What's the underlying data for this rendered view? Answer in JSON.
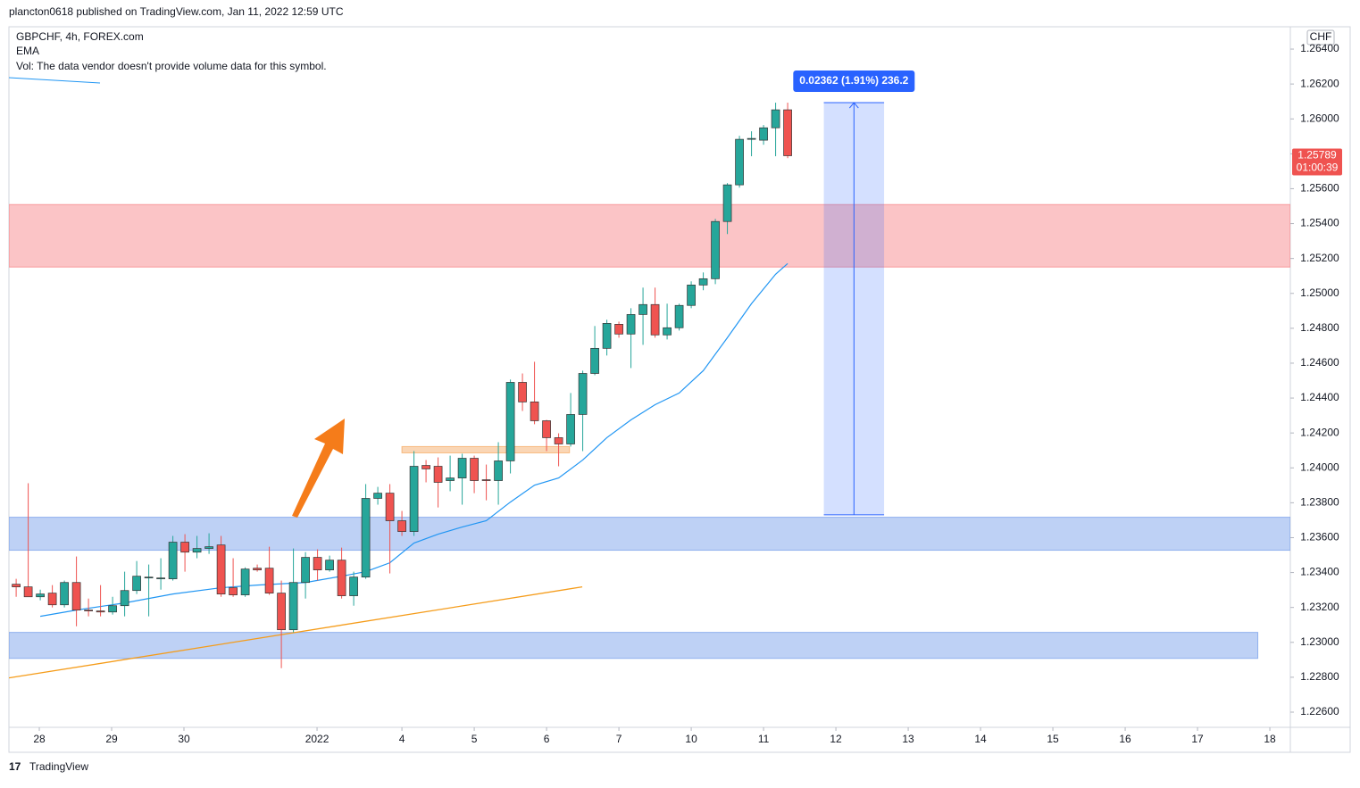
{
  "header": "plancton0618 published on TradingView.com, Jan 11, 2022 12:59 UTC",
  "footer": "TradingView",
  "chart_data": {
    "type": "candlestick",
    "legend": [
      "GBPCHF, 4h, FOREX.com",
      "EMA",
      "Vol: The data vendor doesn't provide volume data for this symbol."
    ],
    "currency": "CHF",
    "x": [
      0,
      1,
      2,
      3,
      4,
      5,
      6,
      7,
      8,
      9,
      10,
      11,
      12,
      13,
      14,
      15,
      16,
      17,
      18,
      19,
      20,
      21,
      22,
      23,
      24,
      25,
      26,
      27,
      28,
      29,
      30,
      31,
      32,
      33,
      34,
      35,
      36,
      37,
      38,
      39,
      40,
      41,
      42,
      43,
      44,
      45,
      46,
      47,
      48,
      49,
      50,
      51,
      52,
      53,
      54,
      55,
      56,
      57,
      58,
      59,
      60,
      61,
      62,
      63,
      64
    ],
    "open": [
      1.23333,
      1.23318,
      1.23261,
      1.23282,
      1.23215,
      1.23343,
      1.23185,
      1.2318,
      1.23174,
      1.2321,
      1.23297,
      1.23369,
      1.23364,
      1.23364,
      1.23574,
      1.23517,
      1.23538,
      1.23558,
      1.23313,
      1.23272,
      1.23425,
      1.23425,
      1.23282,
      1.23072,
      1.23343,
      1.23487,
      1.23415,
      1.23471,
      1.23267,
      1.23374,
      1.23825,
      1.23855,
      1.23697,
      1.23635,
      1.24014,
      1.24009,
      1.23927,
      1.23942,
      1.24055,
      1.23932,
      1.23927,
      1.2404,
      1.2449,
      1.24378,
      1.2427,
      1.24173,
      1.24137,
      1.24306,
      1.24541,
      1.24685,
      1.24823,
      1.24767,
      1.24879,
      1.24936,
      1.24762,
      1.24803,
      1.24931,
      1.25048,
      1.25084,
      1.25412,
      1.25622,
      1.25883,
      1.25878,
      1.25949,
      1.26052
    ],
    "high": [
      1.23364,
      1.23912,
      1.23302,
      1.23328,
      1.23354,
      1.23492,
      1.23251,
      1.23328,
      1.23261,
      1.23405,
      1.23466,
      1.23446,
      1.23482,
      1.2361,
      1.2362,
      1.2361,
      1.23625,
      1.2361,
      1.23482,
      1.2343,
      1.23446,
      1.23548,
      1.23354,
      1.23538,
      1.23517,
      1.23533,
      1.23497,
      1.23543,
      1.23405,
      1.23907,
      1.23891,
      1.23907,
      1.23753,
      1.24096,
      1.24045,
      1.2406,
      1.2407,
      1.24081,
      1.2407,
      1.24019,
      1.24147,
      1.24506,
      1.24541,
      1.24608,
      1.24275,
      1.24198,
      1.24429,
      1.24557,
      1.24813,
      1.24849,
      1.24838,
      1.24915,
      1.25033,
      1.25033,
      1.24941,
      1.24941,
      1.25069,
      1.2512,
      1.25427,
      1.25632,
      1.25903,
      1.25929,
      1.25965,
      1.26093,
      1.26093
    ],
    "low": [
      1.23261,
      1.23261,
      1.23241,
      1.232,
      1.232,
      1.23092,
      1.23149,
      1.23149,
      1.23159,
      1.23149,
      1.23277,
      1.23149,
      1.23302,
      1.23354,
      1.23405,
      1.23482,
      1.23507,
      1.23261,
      1.23261,
      1.23261,
      1.23405,
      1.23272,
      1.22852,
      1.23057,
      1.23251,
      1.23354,
      1.23405,
      1.23251,
      1.2321,
      1.23364,
      1.23789,
      1.23395,
      1.2361,
      1.2361,
      1.23917,
      1.23773,
      1.23866,
      1.23789,
      1.23855,
      1.23814,
      1.23789,
      1.23968,
      1.24326,
      1.2425,
      1.24096,
      1.24009,
      1.24122,
      1.24096,
      1.24531,
      1.24644,
      1.24746,
      1.24572,
      1.24705,
      1.24746,
      1.24736,
      1.24787,
      1.24915,
      1.25018,
      1.25053,
      1.2534,
      1.25606,
      1.25786,
      1.25852,
      1.25786,
      1.25775
    ],
    "close": [
      1.23318,
      1.23261,
      1.23277,
      1.23215,
      1.23343,
      1.23185,
      1.2318,
      1.23174,
      1.2321,
      1.23297,
      1.23379,
      1.23374,
      1.23369,
      1.23574,
      1.23517,
      1.23538,
      1.23548,
      1.23277,
      1.23272,
      1.2342,
      1.23415,
      1.23282,
      1.23072,
      1.23343,
      1.23487,
      1.23415,
      1.23471,
      1.23267,
      1.23374,
      1.23825,
      1.23855,
      1.23697,
      1.23635,
      1.24009,
      1.23994,
      1.23917,
      1.23942,
      1.24055,
      1.23927,
      1.23927,
      1.2404,
      1.2449,
      1.24378,
      1.2427,
      1.24173,
      1.24137,
      1.24306,
      1.24541,
      1.24685,
      1.24828,
      1.24767,
      1.24879,
      1.24936,
      1.24762,
      1.24803,
      1.24931,
      1.25048,
      1.25084,
      1.25412,
      1.25622,
      1.25883,
      1.25888,
      1.25949,
      1.26052,
      1.25789
    ],
    "up_color": "#26a69a",
    "down_color": "#ef5350",
    "ema": {
      "name": "EMA",
      "color": "#2196f3",
      "x": [
        2,
        5,
        9,
        13,
        17,
        20,
        24,
        27,
        29,
        31,
        33,
        35,
        37,
        39,
        41,
        43,
        45,
        47,
        49,
        51,
        53,
        55,
        57,
        59,
        61,
        63,
        64
      ],
      "values": [
        1.23149,
        1.23185,
        1.23226,
        1.23277,
        1.23313,
        1.23328,
        1.23343,
        1.23379,
        1.23405,
        1.23456,
        1.23569,
        1.2362,
        1.23661,
        1.23697,
        1.23804,
        1.23901,
        1.23942,
        1.24045,
        1.24173,
        1.24275,
        1.24362,
        1.24429,
        1.24557,
        1.24746,
        1.24941,
        1.2511,
        1.25171
      ]
    },
    "zones": [
      {
        "color": "#f77c80",
        "x": [
          -0.6,
          105.7
        ],
        "y": [
          1.25151,
          1.25509
        ]
      },
      {
        "color": "#6f98e8",
        "x": [
          -0.6,
          105.7
        ],
        "y": [
          1.23528,
          1.23717
        ]
      },
      {
        "color": "#6f98e8",
        "x": [
          -0.6,
          103
        ],
        "y": [
          1.22908,
          1.23057
        ]
      },
      {
        "color": "#f5a55a",
        "x": [
          32,
          45.9
        ],
        "y": [
          1.24086,
          1.24122
        ]
      }
    ],
    "trendline": {
      "color": "#f59c1a",
      "x": [
        -0.6,
        46.96
      ],
      "y": [
        1.22796,
        1.23318
      ]
    },
    "measure": {
      "x": [
        67,
        72
      ],
      "y": [
        1.23731,
        1.26093
      ],
      "label": "0.02362 (1.91%) 236.2"
    },
    "last_price": {
      "value": 1.25789,
      "label": "1.25789",
      "countdown": "01:00:39"
    },
    "xlim": [
      -0.6,
      105.7
    ],
    "xticks": [
      {
        "value": 1.92,
        "label": "28"
      },
      {
        "value": 7.92,
        "label": "29"
      },
      {
        "value": 13.92,
        "label": "30"
      },
      {
        "value": 24.96,
        "label": "2022"
      },
      {
        "value": 32,
        "label": "4"
      },
      {
        "value": 38,
        "label": "5"
      },
      {
        "value": 44,
        "label": "6"
      },
      {
        "value": 50,
        "label": "7"
      },
      {
        "value": 56,
        "label": "10"
      },
      {
        "value": 62,
        "label": "11"
      },
      {
        "value": 68,
        "label": "12"
      },
      {
        "value": 74,
        "label": "13"
      },
      {
        "value": 80,
        "label": "14"
      },
      {
        "value": 86,
        "label": "15"
      },
      {
        "value": 92,
        "label": "16"
      },
      {
        "value": 98,
        "label": "17"
      },
      {
        "value": 104,
        "label": "18"
      }
    ],
    "ylim": [
      1.22513,
      1.26528
    ],
    "yticks": [
      {
        "value": 1.264,
        "label": "1.26400"
      },
      {
        "value": 1.262,
        "label": "1.26200"
      },
      {
        "value": 1.26,
        "label": "1.26000"
      },
      {
        "value": 1.258,
        "label": "1.25800"
      },
      {
        "value": 1.256,
        "label": "1.25600"
      },
      {
        "value": 1.254,
        "label": "1.25400"
      },
      {
        "value": 1.252,
        "label": "1.25200"
      },
      {
        "value": 1.25,
        "label": "1.25000"
      },
      {
        "value": 1.248,
        "label": "1.24800"
      },
      {
        "value": 1.246,
        "label": "1.24600"
      },
      {
        "value": 1.244,
        "label": "1.24400"
      },
      {
        "value": 1.242,
        "label": "1.24200"
      },
      {
        "value": 1.24,
        "label": "1.24000"
      },
      {
        "value": 1.238,
        "label": "1.23800"
      },
      {
        "value": 1.236,
        "label": "1.23600"
      },
      {
        "value": 1.234,
        "label": "1.23400"
      },
      {
        "value": 1.232,
        "label": "1.23200"
      },
      {
        "value": 1.23,
        "label": "1.23000"
      },
      {
        "value": 1.228,
        "label": "1.22800"
      },
      {
        "value": 1.226,
        "label": "1.22600"
      }
    ],
    "grid": false
  }
}
